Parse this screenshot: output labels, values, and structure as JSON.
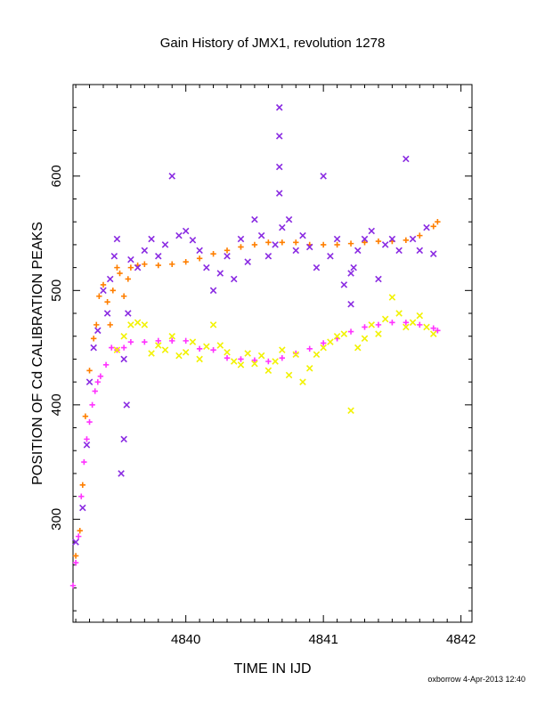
{
  "chart_data": {
    "type": "scatter",
    "title": "Gain History of JMX1, revolution 1278",
    "xlabel": "TIME IN IJD",
    "ylabel": "POSITION OF Cd CALIBRATION PEAKS",
    "xlim": [
      4839.18,
      4842.08
    ],
    "ylim": [
      210,
      680
    ],
    "x_ticks": [
      {
        "value": 4840,
        "label": "4840"
      },
      {
        "value": 4841,
        "label": "4841"
      },
      {
        "value": 4842,
        "label": "4842"
      }
    ],
    "y_ticks": [
      {
        "value": 300,
        "label": "300"
      },
      {
        "value": 400,
        "label": "400"
      },
      {
        "value": 500,
        "label": "500"
      },
      {
        "value": 600,
        "label": "600"
      }
    ],
    "grid": false,
    "footer": "oxborrow  4-Apr-2013 12:40",
    "series": [
      {
        "color": "#ff7f00",
        "marker": "plus",
        "x": [
          4839.2,
          4839.23,
          4839.25,
          4839.27,
          4839.3,
          4839.33,
          4839.35,
          4839.37,
          4839.4,
          4839.43,
          4839.45,
          4839.47,
          4839.5,
          4839.52,
          4839.55,
          4839.58,
          4839.6,
          4839.65,
          4839.7,
          4839.8,
          4839.9,
          4840.0,
          4840.1,
          4840.2,
          4840.3,
          4840.4,
          4840.5,
          4840.6,
          4840.7,
          4840.8,
          4840.9,
          4841.0,
          4841.1,
          4841.2,
          4841.3,
          4841.4,
          4841.5,
          4841.6,
          4841.7,
          4841.8,
          4841.83
        ],
        "y": [
          268,
          290,
          330,
          390,
          430,
          458,
          470,
          495,
          505,
          490,
          470,
          500,
          520,
          515,
          495,
          510,
          520,
          522,
          523,
          522,
          523,
          525,
          528,
          532,
          535,
          538,
          540,
          542,
          542,
          542,
          540,
          540,
          540,
          541,
          542,
          543,
          543,
          544,
          548,
          556,
          560
        ]
      },
      {
        "color": "#ff33ff",
        "marker": "plus",
        "x": [
          4839.18,
          4839.2,
          4839.22,
          4839.24,
          4839.26,
          4839.28,
          4839.3,
          4839.32,
          4839.34,
          4839.36,
          4839.38,
          4839.42,
          4839.46,
          4839.5,
          4839.55,
          4839.6,
          4839.7,
          4839.8,
          4839.9,
          4840.0,
          4840.1,
          4840.2,
          4840.3,
          4840.4,
          4840.5,
          4840.6,
          4840.7,
          4840.8,
          4840.9,
          4841.0,
          4841.1,
          4841.2,
          4841.3,
          4841.4,
          4841.5,
          4841.6,
          4841.7,
          4841.8,
          4841.83
        ],
        "y": [
          242,
          262,
          285,
          320,
          350,
          370,
          385,
          400,
          412,
          420,
          425,
          435,
          450,
          448,
          450,
          455,
          455,
          456,
          456,
          456,
          449,
          448,
          441,
          440,
          439,
          438,
          441,
          445,
          449,
          454,
          458,
          464,
          468,
          470,
          472,
          472,
          470,
          467,
          465
        ]
      },
      {
        "color": "#f2f200",
        "marker": "cross",
        "x": [
          4839.5,
          4839.55,
          4839.6,
          4839.65,
          4839.7,
          4839.75,
          4839.8,
          4839.85,
          4839.9,
          4839.95,
          4840.0,
          4840.05,
          4840.1,
          4840.15,
          4840.2,
          4840.25,
          4840.3,
          4840.35,
          4840.4,
          4840.45,
          4840.5,
          4840.55,
          4840.6,
          4840.65,
          4840.7,
          4840.75,
          4840.8,
          4840.85,
          4840.9,
          4840.95,
          4841.0,
          4841.05,
          4841.1,
          4841.15,
          4841.2,
          4841.25,
          4841.3,
          4841.35,
          4841.4,
          4841.45,
          4841.5,
          4841.55,
          4841.6,
          4841.65,
          4841.7,
          4841.75,
          4841.8
        ],
        "y": [
          448,
          460,
          470,
          472,
          470,
          445,
          452,
          448,
          460,
          443,
          446,
          455,
          440,
          451,
          470,
          452,
          446,
          438,
          435,
          445,
          436,
          443,
          430,
          438,
          448,
          426,
          444,
          420,
          432,
          444,
          450,
          455,
          460,
          462,
          395,
          450,
          458,
          470,
          462,
          475,
          494,
          480,
          468,
          472,
          478,
          468,
          462
        ]
      },
      {
        "color": "#8a2be2",
        "marker": "cross",
        "x": [
          4839.2,
          4839.25,
          4839.28,
          4839.3,
          4839.33,
          4839.36,
          4839.4,
          4839.43,
          4839.45,
          4839.48,
          4839.5,
          4839.53,
          4839.55,
          4839.55,
          4839.57,
          4839.58,
          4839.6,
          4839.65,
          4839.7,
          4839.75,
          4839.8,
          4839.85,
          4839.9,
          4839.95,
          4840.0,
          4840.05,
          4840.1,
          4840.15,
          4840.2,
          4840.25,
          4840.3,
          4840.35,
          4840.4,
          4840.45,
          4840.5,
          4840.55,
          4840.6,
          4840.65,
          4840.68,
          4840.68,
          4840.68,
          4840.68,
          4840.7,
          4840.75,
          4840.8,
          4840.85,
          4840.9,
          4840.95,
          4841.0,
          4841.05,
          4841.1,
          4841.15,
          4841.2,
          4841.2,
          4841.22,
          4841.25,
          4841.3,
          4841.35,
          4841.4,
          4841.45,
          4841.5,
          4841.55,
          4841.6,
          4841.65,
          4841.7,
          4841.75,
          4841.8
        ],
        "y": [
          280,
          310,
          365,
          420,
          450,
          465,
          500,
          480,
          510,
          530,
          545,
          340,
          440,
          370,
          400,
          480,
          527,
          520,
          535,
          545,
          530,
          540,
          600,
          548,
          552,
          544,
          535,
          520,
          500,
          515,
          530,
          510,
          545,
          525,
          562,
          548,
          530,
          540,
          660,
          635,
          608,
          585,
          555,
          562,
          535,
          548,
          538,
          520,
          600,
          530,
          545,
          505,
          515,
          488,
          520,
          535,
          545,
          552,
          510,
          540,
          545,
          535,
          615,
          545,
          535,
          555,
          532
        ]
      }
    ]
  }
}
